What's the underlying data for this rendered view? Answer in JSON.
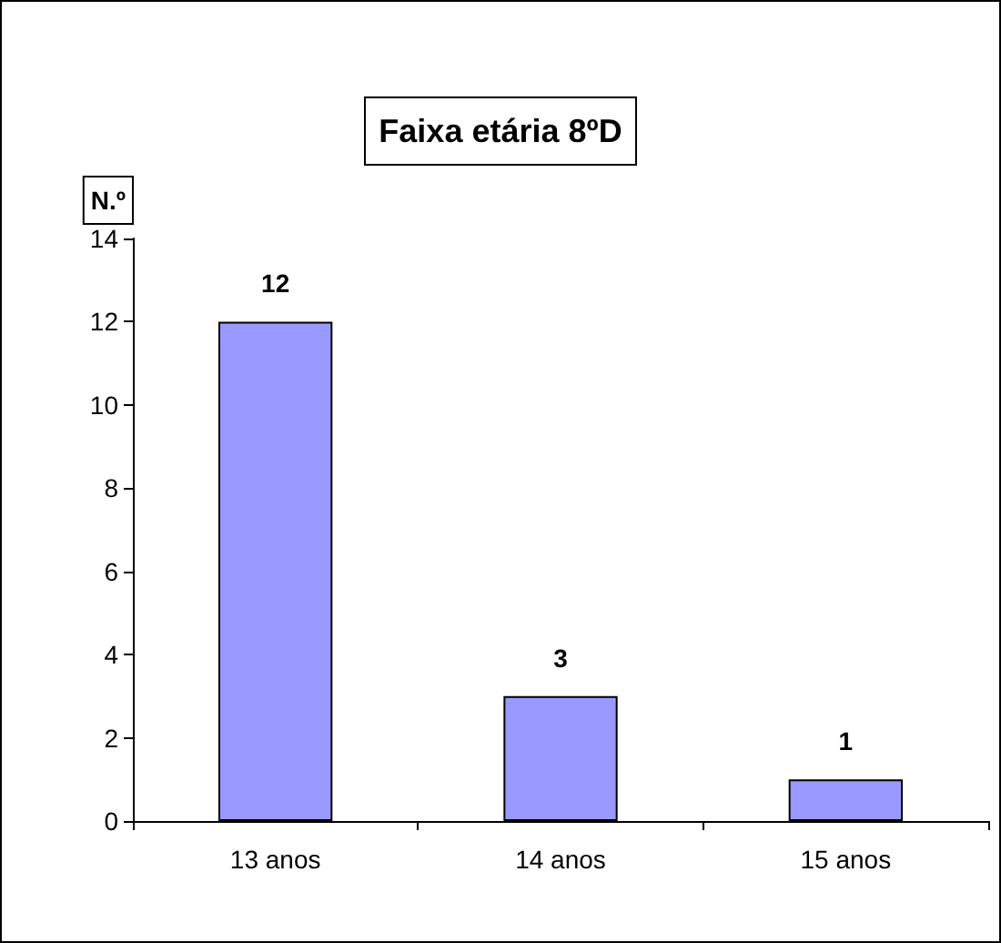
{
  "chart_data": {
    "type": "bar",
    "title": "Faixa etária 8ºD",
    "ylabel": "N.º",
    "categories": [
      "13 anos",
      "14 anos",
      "15 anos"
    ],
    "values": [
      12,
      3,
      1
    ],
    "color": "#9999ff",
    "ylim": [
      0,
      14
    ],
    "yticks": [
      0,
      2,
      4,
      6,
      8,
      10,
      12,
      14
    ],
    "grid": false,
    "data_labels": true
  }
}
